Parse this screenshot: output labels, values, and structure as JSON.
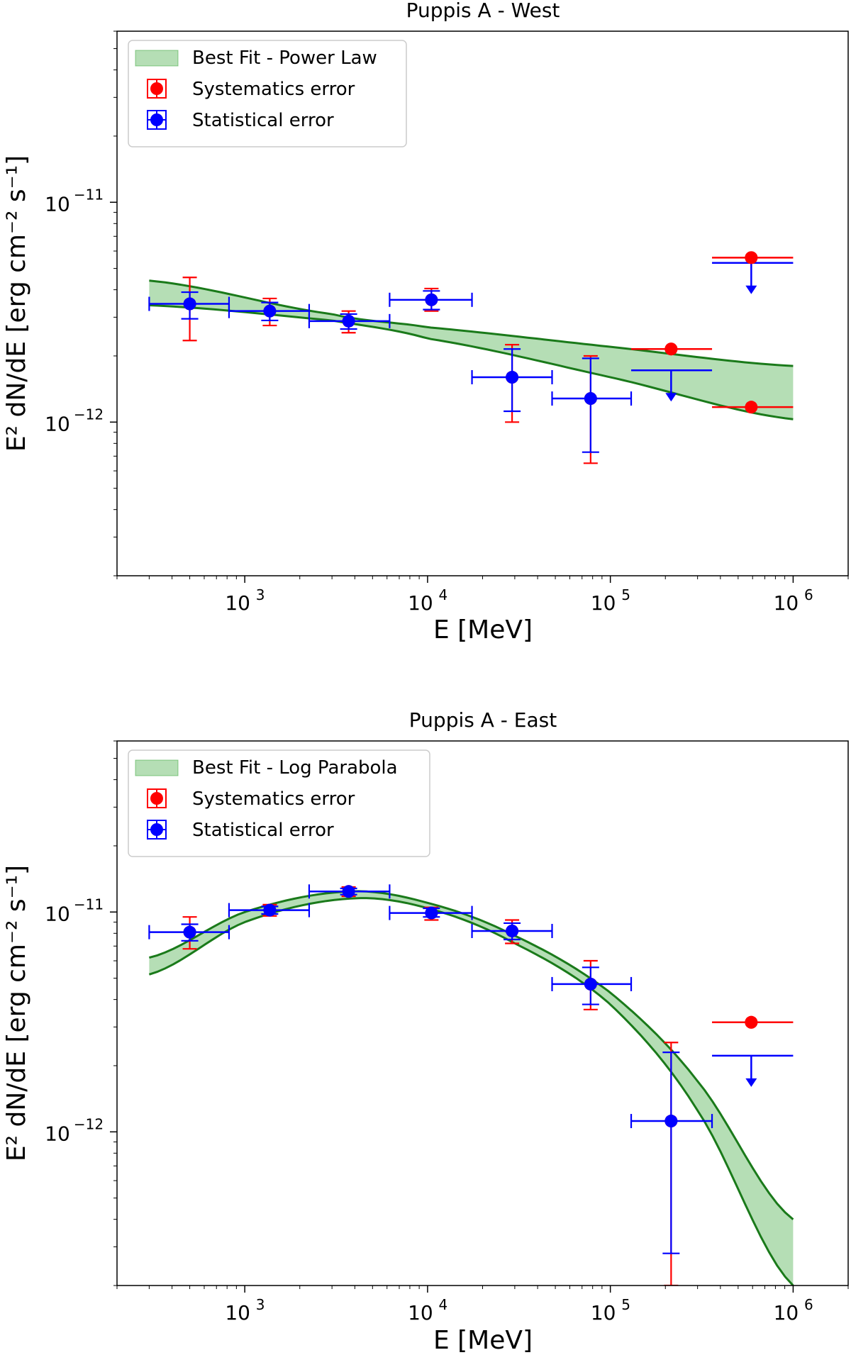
{
  "chart_data": [
    {
      "type": "scatter",
      "title": "Puppis A - West",
      "xlabel": "E [MeV]",
      "ylabel": "E² dN/dE [erg cm⁻² s⁻¹]",
      "xscale": "log",
      "yscale": "log",
      "xlim": [
        200,
        2000000
      ],
      "ylim": [
        2e-13,
        6e-11
      ],
      "x_ticks": [
        {
          "base": "10",
          "exp": "3",
          "value": 1000
        },
        {
          "base": "10",
          "exp": "4",
          "value": 10000
        },
        {
          "base": "10",
          "exp": "5",
          "value": 100000
        },
        {
          "base": "10",
          "exp": "6",
          "value": 1000000
        }
      ],
      "y_ticks": [
        {
          "base": "10",
          "exp": "−11",
          "value": 1e-11
        },
        {
          "base": "10",
          "exp": "−12",
          "value": 1e-12
        }
      ],
      "legend": {
        "position": "upper-left",
        "entries": [
          {
            "label": "Best Fit - Power Law",
            "kind": "band",
            "color": "#2ca02c"
          },
          {
            "label": "Systematics error",
            "kind": "point",
            "color": "#ff0000"
          },
          {
            "label": "Statistical error",
            "kind": "point",
            "color": "#0000ff"
          }
        ]
      },
      "band": {
        "model": "power-law",
        "x_range": [
          300,
          1000000
        ],
        "upper": [
          [
            300,
            4.4e-12
          ],
          [
            3000,
            3.1e-12
          ],
          [
            10000,
            2.7e-12
          ],
          [
            100000,
            2.2e-12
          ],
          [
            1000000,
            1.8e-12
          ]
        ],
        "lower": [
          [
            300,
            3.4e-12
          ],
          [
            3000,
            2.9e-12
          ],
          [
            10000,
            2.4e-12
          ],
          [
            100000,
            1.6e-12
          ],
          [
            1000000,
            1.03e-12
          ]
        ],
        "fill_color": "#2ca02c",
        "line_color": "#1a7a1a"
      },
      "points": [
        {
          "x": 500,
          "xlo": 300,
          "xhi": 820,
          "y": 3.45e-12,
          "stat_lo": 2.95e-12,
          "stat_hi": 3.9e-12,
          "sys_lo": 2.35e-12,
          "sys_hi": 4.55e-12
        },
        {
          "x": 1370,
          "xlo": 820,
          "xhi": 2250,
          "y": 3.2e-12,
          "stat_lo": 2.9e-12,
          "stat_hi": 3.5e-12,
          "sys_lo": 2.75e-12,
          "sys_hi": 3.65e-12
        },
        {
          "x": 3700,
          "xlo": 2250,
          "xhi": 6200,
          "y": 2.88e-12,
          "stat_lo": 2.65e-12,
          "stat_hi": 3.1e-12,
          "sys_lo": 2.55e-12,
          "sys_hi": 3.2e-12
        },
        {
          "x": 10500,
          "xlo": 6200,
          "xhi": 17500,
          "y": 3.6e-12,
          "stat_lo": 3.25e-12,
          "stat_hi": 3.95e-12,
          "sys_lo": 3.2e-12,
          "sys_hi": 4.05e-12
        },
        {
          "x": 29000,
          "xlo": 17500,
          "xhi": 48000,
          "y": 1.6e-12,
          "stat_lo": 1.12e-12,
          "stat_hi": 2.15e-12,
          "sys_lo": 1e-12,
          "sys_hi": 2.25e-12
        },
        {
          "x": 78000,
          "xlo": 48000,
          "xhi": 130000,
          "y": 1.28e-12,
          "stat_lo": 7.3e-13,
          "stat_hi": 1.95e-12,
          "sys_lo": 6.5e-13,
          "sys_hi": 2e-12
        }
      ],
      "upper_limits": [
        {
          "x": 215000,
          "xlo": 130000,
          "xhi": 360000,
          "y_sys": 2.15e-12,
          "y_sys_point": 2.15e-12,
          "y_stat": 1.72e-12,
          "y_stat_point": 1.72e-12,
          "sys_bar": true
        },
        {
          "x": 590000,
          "xlo": 360000,
          "xhi": 1000000,
          "y_sys": 5.6e-12,
          "y_sys_point": 5.6e-12,
          "y_stat": 5.3e-12,
          "y_stat_point": 5.3e-12,
          "sys_bar": true
        },
        {
          "x": 590000,
          "xlo": 360000,
          "xhi": 1000000,
          "y_sys": 1.17e-12,
          "y_sys_point": 1.17e-12,
          "y_stat": null,
          "y_stat_point": null,
          "sys_bar": true
        }
      ]
    },
    {
      "type": "scatter",
      "title": "Puppis A - East",
      "xlabel": "E [MeV]",
      "ylabel": "E² dN/dE [erg cm⁻² s⁻¹]",
      "xscale": "log",
      "yscale": "log",
      "xlim": [
        200,
        2000000
      ],
      "ylim": [
        2e-13,
        6e-11
      ],
      "x_ticks": [
        {
          "base": "10",
          "exp": "3",
          "value": 1000
        },
        {
          "base": "10",
          "exp": "4",
          "value": 10000
        },
        {
          "base": "10",
          "exp": "5",
          "value": 100000
        },
        {
          "base": "10",
          "exp": "6",
          "value": 1000000
        }
      ],
      "y_ticks": [
        {
          "base": "10",
          "exp": "−11",
          "value": 1e-11
        },
        {
          "base": "10",
          "exp": "−12",
          "value": 1e-12
        }
      ],
      "legend": {
        "position": "upper-left",
        "entries": [
          {
            "label": "Best Fit - Log Parabola",
            "kind": "band",
            "color": "#2ca02c"
          },
          {
            "label": "Systematics error",
            "kind": "point",
            "color": "#ff0000"
          },
          {
            "label": "Statistical error",
            "kind": "point",
            "color": "#0000ff"
          }
        ]
      },
      "band": {
        "model": "log-parabola",
        "x_range": [
          300,
          1000000
        ],
        "upper": [
          [
            300,
            6.2e-12
          ],
          [
            1000,
            1e-11
          ],
          [
            3700,
            1.24e-11
          ],
          [
            10000,
            1.1e-11
          ],
          [
            30000,
            7.8e-12
          ],
          [
            100000,
            4.3e-12
          ],
          [
            300000,
            1.7e-12
          ],
          [
            1000000,
            4e-13
          ]
        ],
        "lower": [
          [
            300,
            5.2e-12
          ],
          [
            1000,
            9e-12
          ],
          [
            3700,
            1.15e-11
          ],
          [
            10000,
            1.04e-11
          ],
          [
            30000,
            7.2e-12
          ],
          [
            100000,
            3.8e-12
          ],
          [
            300000,
            1.25e-12
          ],
          [
            1000000,
            2e-13
          ]
        ],
        "fill_color": "#2ca02c",
        "line_color": "#1a7a1a"
      },
      "points": [
        {
          "x": 500,
          "xlo": 300,
          "xhi": 820,
          "y": 8.1e-12,
          "stat_lo": 7.4e-12,
          "stat_hi": 8.8e-12,
          "sys_lo": 6.8e-12,
          "sys_hi": 9.5e-12
        },
        {
          "x": 1370,
          "xlo": 820,
          "xhi": 2250,
          "y": 1.02e-11,
          "stat_lo": 9.8e-12,
          "stat_hi": 1.06e-11,
          "sys_lo": 9.6e-12,
          "sys_hi": 1.08e-11
        },
        {
          "x": 3700,
          "xlo": 2250,
          "xhi": 6200,
          "y": 1.24e-11,
          "stat_lo": 1.2e-11,
          "stat_hi": 1.28e-11,
          "sys_lo": 1.18e-11,
          "sys_hi": 1.3e-11
        },
        {
          "x": 10500,
          "xlo": 6200,
          "xhi": 17500,
          "y": 9.9e-12,
          "stat_lo": 9.5e-12,
          "stat_hi": 1.04e-11,
          "sys_lo": 9.2e-12,
          "sys_hi": 1.05e-11
        },
        {
          "x": 29000,
          "xlo": 17500,
          "xhi": 48000,
          "y": 8.2e-12,
          "stat_lo": 7.5e-12,
          "stat_hi": 8.9e-12,
          "sys_lo": 7.2e-12,
          "sys_hi": 9.2e-12
        },
        {
          "x": 78000,
          "xlo": 48000,
          "xhi": 130000,
          "y": 4.7e-12,
          "stat_lo": 3.8e-12,
          "stat_hi": 5.6e-12,
          "sys_lo": 3.6e-12,
          "sys_hi": 6e-12
        },
        {
          "x": 215000,
          "xlo": 130000,
          "xhi": 360000,
          "y": 1.12e-12,
          "stat_lo": 2.8e-13,
          "stat_hi": 2.3e-12,
          "sys_lo": 2e-13,
          "sys_hi": 2.55e-12
        }
      ],
      "upper_limits": [
        {
          "x": 590000,
          "xlo": 360000,
          "xhi": 1000000,
          "y_sys": 3.15e-12,
          "y_sys_point": 3.15e-12,
          "y_stat": 2.22e-12,
          "y_stat_point": 2.22e-12,
          "sys_bar": true
        }
      ]
    }
  ]
}
